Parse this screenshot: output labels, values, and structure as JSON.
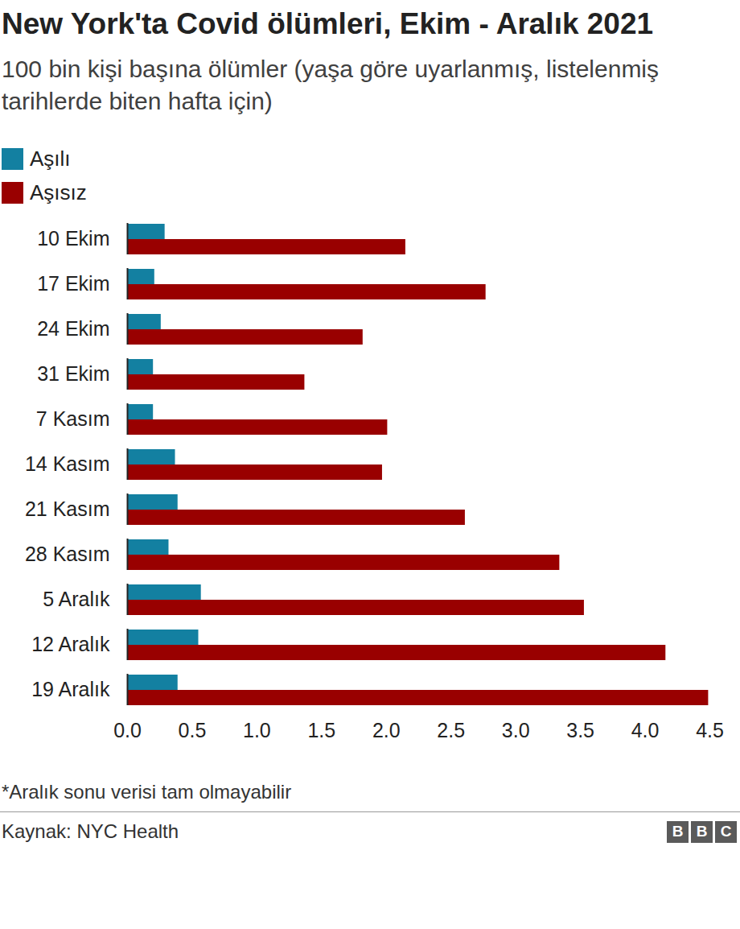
{
  "chart_data": {
    "type": "bar",
    "orientation": "horizontal",
    "title": "New York'ta Covid ölümleri, Ekim - Aralık 2021",
    "subtitle": "100 bin kişi başına ölümler (yaşa göre uyarlanmış, listelenmiş tarihlerde biten hafta için)",
    "categories": [
      "10 Ekim",
      "17 Ekim",
      "24 Ekim",
      "31 Ekim",
      "7 Kasım",
      "14 Kasım",
      "21 Kasım",
      "28 Kasım",
      "5 Aralık",
      "12 Aralık",
      "19 Aralık"
    ],
    "series": [
      {
        "name": "Aşılı",
        "color": "#1380a1",
        "values": [
          0.29,
          0.21,
          0.26,
          0.2,
          0.2,
          0.37,
          0.39,
          0.32,
          0.57,
          0.55,
          0.39
        ]
      },
      {
        "name": "Aşısız",
        "color": "#990000",
        "values": [
          2.15,
          2.77,
          1.82,
          1.37,
          2.01,
          1.97,
          2.61,
          3.34,
          3.53,
          4.16,
          4.49
        ]
      }
    ],
    "xlim": [
      0,
      4.5
    ],
    "xticks": [
      {
        "value": 0,
        "label": "0.0"
      },
      0.5,
      {
        "value": 1,
        "label": "1.0"
      },
      1.5,
      {
        "value": 2,
        "label": "2.0"
      },
      2.5,
      {
        "value": 3,
        "label": "3.0"
      },
      3.5,
      {
        "value": 4,
        "label": "4.0"
      },
      4.5
    ],
    "grid": false,
    "legend": "top-left",
    "note": "*Aralık sonu verisi tam olmayabilir",
    "source": "Kaynak: NYC Health",
    "logo": "BBC"
  }
}
